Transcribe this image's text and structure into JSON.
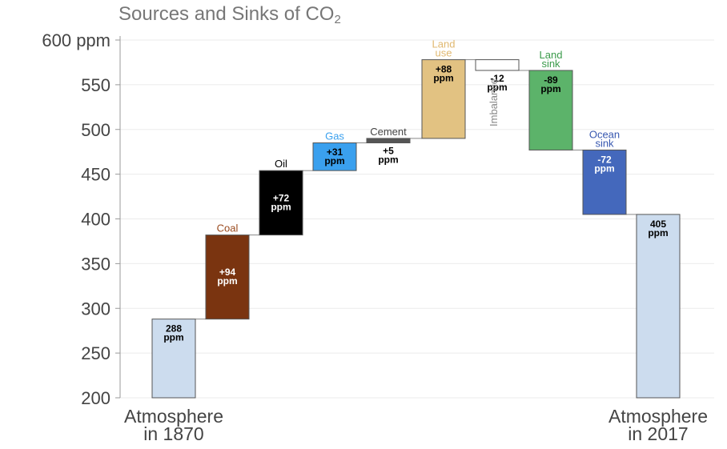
{
  "chart_data": {
    "type": "bar",
    "subtype": "waterfall",
    "title_text": "Sources and Sinks of CO",
    "title_subscript": "2",
    "ylim": [
      200,
      600
    ],
    "y_ticks": [
      "200",
      "250",
      "300",
      "350",
      "400",
      "450",
      "500",
      "550",
      "600 ppm"
    ],
    "y_tick_values": [
      200,
      250,
      300,
      350,
      400,
      450,
      500,
      550,
      600
    ],
    "grid": true,
    "x_labels": {
      "start": [
        "Atmosphere",
        "in 1870"
      ],
      "end": [
        "Atmosphere",
        "in 2017"
      ]
    },
    "bars": [
      {
        "id": "atm1870",
        "label": [],
        "value_lines": [
          "288",
          "ppm"
        ],
        "base": 200,
        "top": 288,
        "color": "#ccdcee",
        "label_color": "#000000",
        "value_color": "#000000",
        "value_pos": "inside-top"
      },
      {
        "id": "coal",
        "label": [
          "Coal"
        ],
        "value_lines": [
          "+94",
          "ppm"
        ],
        "base": 288,
        "top": 382,
        "color": "#7a3410",
        "label_color": "#9a4a1e",
        "value_color": "#ffffff",
        "value_pos": "inside-mid"
      },
      {
        "id": "oil",
        "label": [
          "Oil"
        ],
        "value_lines": [
          "+72",
          "ppm"
        ],
        "base": 382,
        "top": 454,
        "color": "#000000",
        "label_color": "#000000",
        "value_color": "#ffffff",
        "value_pos": "inside-mid"
      },
      {
        "id": "gas",
        "label": [
          "Gas"
        ],
        "value_lines": [
          "+31",
          "ppm"
        ],
        "base": 454,
        "top": 485,
        "color": "#3aa0ee",
        "label_color": "#3aa0ee",
        "value_color": "#000000",
        "value_pos": "inside-mid"
      },
      {
        "id": "cement",
        "label": [
          "Cement"
        ],
        "value_lines": [
          "+5",
          "ppm"
        ],
        "base": 485,
        "top": 490,
        "color": "#555555",
        "label_color": "#444444",
        "value_color": "#000000",
        "value_pos": "below"
      },
      {
        "id": "landuse",
        "label": [
          "Land",
          "use"
        ],
        "value_lines": [
          "+88",
          "ppm"
        ],
        "base": 490,
        "top": 578,
        "color": "#e2c282",
        "label_color": "#e0b870",
        "value_color": "#000000",
        "value_pos": "inside-top"
      },
      {
        "id": "imbalance",
        "label": [],
        "value_lines": [
          "-12",
          "ppm"
        ],
        "base": 566,
        "top": 578,
        "color": "#ffffff",
        "label_color": "#888888",
        "value_color": "#000000",
        "value_pos": "below",
        "side_text": "Imbalance"
      },
      {
        "id": "landsink",
        "label": [
          "Land",
          "sink"
        ],
        "value_lines": [
          "-89",
          "ppm"
        ],
        "base": 477,
        "top": 566,
        "color": "#5cb36a",
        "label_color": "#3a9a4a",
        "value_color": "#000000",
        "value_pos": "inside-top"
      },
      {
        "id": "oceansink",
        "label": [
          "Ocean",
          "sink"
        ],
        "value_lines": [
          "-72",
          "ppm"
        ],
        "base": 405,
        "top": 477,
        "color": "#4468bc",
        "label_color": "#3858b0",
        "value_color": "#ffffff",
        "value_pos": "inside-top"
      },
      {
        "id": "atm2017",
        "label": [],
        "value_lines": [
          "405",
          "ppm"
        ],
        "base": 200,
        "top": 405,
        "color": "#ccdcee",
        "label_color": "#000000",
        "value_color": "#000000",
        "value_pos": "inside-top"
      }
    ]
  }
}
